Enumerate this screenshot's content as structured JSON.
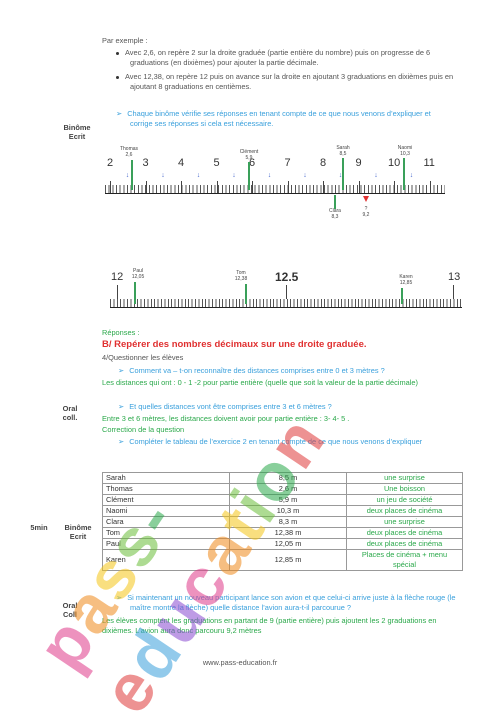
{
  "intro": {
    "lead": "Par exemple :",
    "bullets": [
      "Avec 2,6, on repère 2 sur la droite graduée (partie entière du nombre) puis on progresse de 6 graduations (en dixièmes) pour ajouter la partie décimale.",
      "Avec 12,38, on repère 12 puis on avance sur la droite en ajoutant 3 graduations en dixièmes puis en ajoutant 8 graduations en centièmes."
    ]
  },
  "check": "Chaque binôme vérifie ses réponses en tenant compte de ce que nous venons d’expliquer et corrige ses réponses si cela est nécessaire.",
  "side_labels": {
    "binome_ecrit_1": [
      "Binôme",
      "Ecrit"
    ],
    "oral_coll": [
      "Oral",
      "coll."
    ],
    "time": "5min",
    "binome_ecrit_2": [
      "Binôme",
      "Ecrit"
    ],
    "oral_coll_2": [
      "Oral",
      "Coll"
    ]
  },
  "ruler1": {
    "numbers": [
      "2",
      "3",
      "4",
      "5",
      "6",
      "7",
      "8",
      "9",
      "10",
      "11"
    ],
    "names": [
      {
        "name": "Thomas",
        "value": "2,6"
      },
      {
        "name": "Clément",
        "value": "5,9"
      },
      {
        "name": "Sarah",
        "value": "8,5"
      },
      {
        "name": "Naomi",
        "value": "10,3"
      },
      {
        "name": "Clara",
        "value": "8,3"
      },
      {
        "name": "?",
        "value": "9,2"
      }
    ]
  },
  "ruler2": {
    "numbers": [
      "12",
      "12.5",
      "13"
    ],
    "names": [
      {
        "name": "Paul",
        "value": "12,05"
      },
      {
        "name": "Tom",
        "value": "12,38"
      },
      {
        "name": "Karen",
        "value": "12,85"
      }
    ]
  },
  "section": {
    "responses": "Réponses :",
    "title": "B/ Repérer des nombres décimaux sur une droite graduée.",
    "step": "4/Questionner les élèves",
    "q1": "Comment va – t-on reconnaître des distances comprises entre 0 et 3 mètres ?",
    "a1": "Les distances qui ont : 0 - 1 -2 pour partie entière (quelle que soit la valeur de la partie décimale)",
    "q2": "Et quelles distances vont être comprises entre 3 et 6 mètres ?",
    "a2": "Entre 3 et 6 mètres, les distances doivent avoir pour partie entière : 3- 4- 5 .",
    "correction": "Correction de la question",
    "complete": "Compléter le tableau de l’exercice 2 en tenant compte de ce que nous venons d’expliquer"
  },
  "table": [
    {
      "name": "Sarah",
      "distance": "8,5 m",
      "gift": "une surprise"
    },
    {
      "name": "Thomas",
      "distance": "2,6 m",
      "gift": "Une boisson"
    },
    {
      "name": "Clément",
      "distance": "5,9 m",
      "gift": "un jeu de société"
    },
    {
      "name": "Naomi",
      "distance": "10,3 m",
      "gift": "deux places de cinéma"
    },
    {
      "name": "Clara",
      "distance": "8,3 m",
      "gift": "une surprise"
    },
    {
      "name": "Tom",
      "distance": "12,38 m",
      "gift": "deux places de cinéma"
    },
    {
      "name": "Paul",
      "distance": "12,05 m",
      "gift": "deux places de cinéma"
    },
    {
      "name": "Karen",
      "distance": "12,85 m",
      "gift": "Places de cinéma + menu spécial"
    }
  ],
  "final": {
    "question_a": "Si maintenant un nouveau participant lance son avion et que celui-ci arrive juste à la flèche rouge (le maître montre la flèche)",
    "question_b": "quelle distance l’avion aura-t-il parcourue ?",
    "answer": "Les élèves comptent les graduations en partant de 9 (partie entière) puis ajoutent les 2 graduations en dixièmes. L’avion aura donc parcouru 9,2 mètres"
  },
  "footer": "www.pass-education.fr",
  "watermark": "pass-education"
}
